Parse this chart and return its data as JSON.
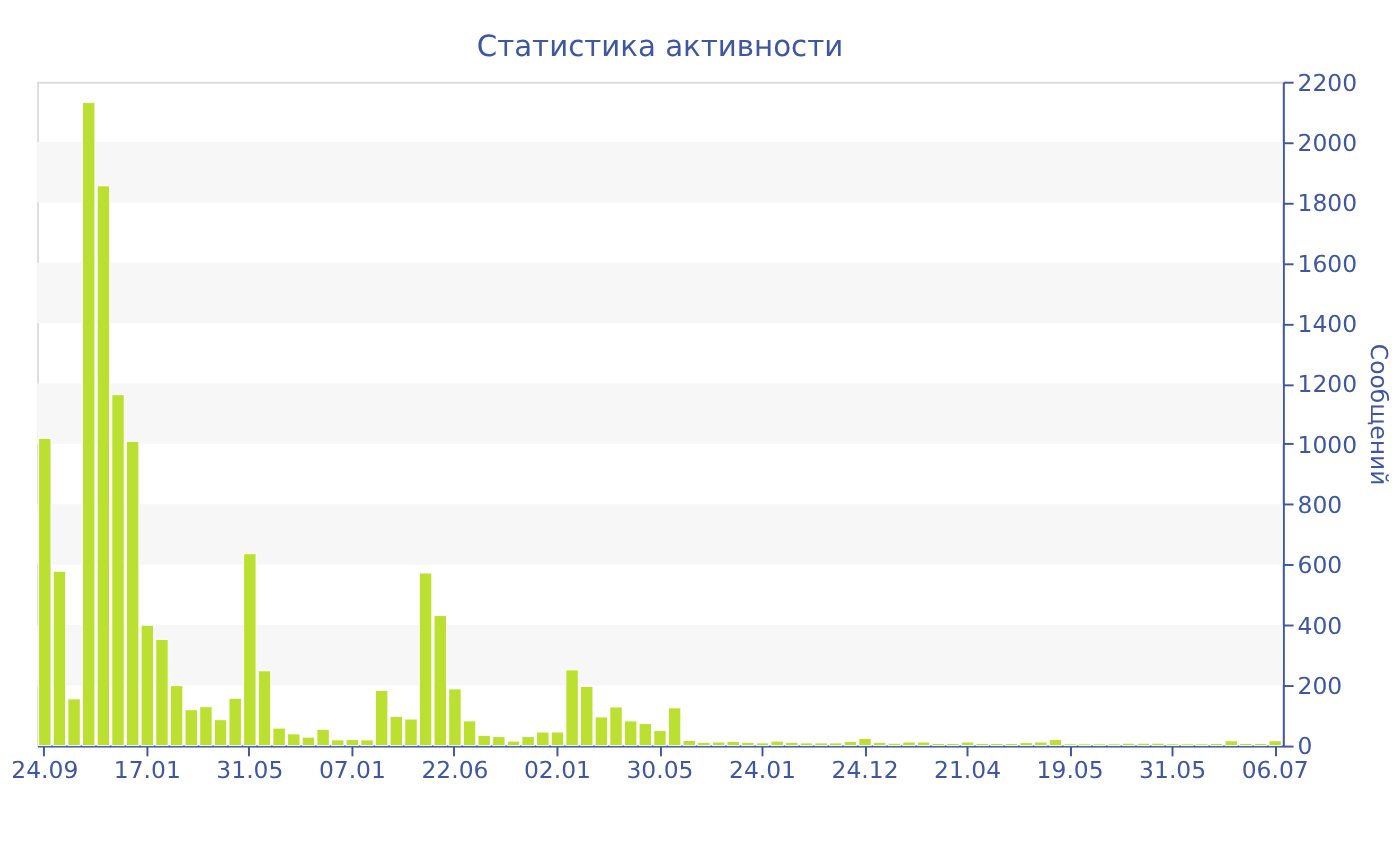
{
  "chart_data": {
    "type": "bar",
    "title": "Статистика активности",
    "ylabel": "Сообщений",
    "categories": [
      "24.09",
      null,
      null,
      null,
      null,
      null,
      null,
      "17.01",
      null,
      null,
      null,
      null,
      null,
      null,
      "31.05",
      null,
      null,
      null,
      null,
      null,
      null,
      "07.01",
      null,
      null,
      null,
      null,
      null,
      null,
      "22.06",
      null,
      null,
      null,
      null,
      null,
      null,
      "02.01",
      null,
      null,
      null,
      null,
      null,
      null,
      "30.05",
      null,
      null,
      null,
      null,
      null,
      null,
      "24.01",
      null,
      null,
      null,
      null,
      null,
      null,
      "24.12",
      null,
      null,
      null,
      null,
      null,
      null,
      "21.04",
      null,
      null,
      null,
      null,
      null,
      null,
      "19.05",
      null,
      null,
      null,
      null,
      null,
      null,
      "31.05",
      null,
      null,
      null,
      null,
      null,
      null,
      "06.07"
    ],
    "values": [
      1018,
      578,
      155,
      2131,
      1855,
      1163,
      1008,
      399,
      352,
      199,
      119,
      129,
      86,
      157,
      636,
      248,
      58,
      39,
      28,
      54,
      19,
      20,
      19,
      183,
      97,
      88,
      572,
      431,
      188,
      82,
      34,
      30,
      15,
      30,
      45,
      45,
      251,
      196,
      95,
      128,
      82,
      73,
      50,
      125,
      17,
      11,
      12,
      14,
      11,
      9,
      15,
      11,
      9,
      9,
      9,
      14,
      24,
      11,
      8,
      12,
      12,
      7,
      7,
      12,
      7,
      7,
      7,
      10,
      12,
      20,
      6,
      6,
      6,
      6,
      8,
      8,
      8,
      6,
      6,
      6,
      7,
      16,
      7,
      7,
      16
    ],
    "color": "#bce032",
    "ylim": [
      0,
      2200
    ],
    "yticks": [
      0,
      200,
      400,
      600,
      800,
      1000,
      1200,
      1400,
      1600,
      1800,
      2000,
      2200
    ],
    "bands": [
      {
        "axis": "y",
        "from": 200,
        "to": 400,
        "color": "#f7f7f7"
      },
      {
        "axis": "y",
        "from": 600,
        "to": 800,
        "color": "#f7f7f7"
      },
      {
        "axis": "y",
        "from": 1000,
        "to": 1200,
        "color": "#f7f7f7"
      },
      {
        "axis": "y",
        "from": 1400,
        "to": 1600,
        "color": "#f7f7f7"
      },
      {
        "axis": "y",
        "from": 1800,
        "to": 2000,
        "color": "#f7f7f7"
      }
    ],
    "grid": false
  }
}
